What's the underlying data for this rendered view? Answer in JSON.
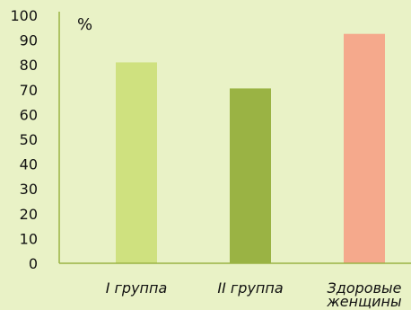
{
  "chart_data": {
    "type": "bar",
    "categories": [
      "I группа",
      "II группа",
      "Здоровые женщины"
    ],
    "category_lines": [
      [
        "I группа"
      ],
      [
        "II группа"
      ],
      [
        "Здоровые",
        "женщины"
      ]
    ],
    "values": [
      81,
      70.5,
      92.5
    ],
    "colors": [
      "#cfe17f",
      "#9ab344",
      "#f5a98c"
    ],
    "ylabel": "%",
    "ylim": [
      0,
      100
    ],
    "yticks": [
      0,
      10,
      20,
      30,
      40,
      50,
      60,
      70,
      80,
      90,
      100
    ],
    "grid": false,
    "axis_color": "#9ab344",
    "background": "#e9f2c6"
  }
}
